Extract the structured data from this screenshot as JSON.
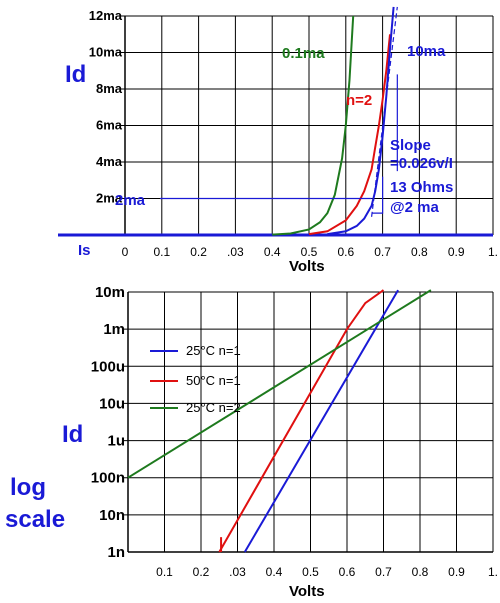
{
  "colors": {
    "blue": "#1a1ad6",
    "red": "#e01010",
    "green": "#1e7a1e",
    "grid": "#000000"
  },
  "chart_data": [
    {
      "type": "line",
      "xlabel": "Volts",
      "ylabel": "Id",
      "x_tick_labels": [
        "0",
        "0.1",
        "0.2",
        ".03",
        "0.4",
        "0.5",
        "0.6",
        "0.7",
        "0.8",
        "0.9",
        "1."
      ],
      "y_tick_labels": [
        "2ma",
        "4ma",
        "6ma",
        "8ma",
        "10ma",
        "12ma"
      ],
      "xlim": [
        0,
        1.0
      ],
      "ylim": [
        0,
        12
      ],
      "y_unit": "ma",
      "grid": true,
      "series": [
        {
          "name": "0.1ma",
          "color": "green",
          "x": [
            0.4,
            0.45,
            0.5,
            0.53,
            0.55,
            0.57,
            0.59,
            0.6,
            0.61,
            0.62
          ],
          "y": [
            0.02,
            0.08,
            0.3,
            0.7,
            1.2,
            2.2,
            4.2,
            6.0,
            8.5,
            12.0
          ]
        },
        {
          "name": "n=2",
          "color": "red",
          "x": [
            0.5,
            0.55,
            0.6,
            0.63,
            0.65,
            0.67,
            0.68,
            0.69,
            0.7,
            0.71,
            0.72
          ],
          "y": [
            0.05,
            0.2,
            0.8,
            1.6,
            2.4,
            3.6,
            4.8,
            6.0,
            7.4,
            9.0,
            11.0
          ]
        },
        {
          "name": "10ma",
          "color": "blue",
          "x": [
            0.55,
            0.6,
            0.63,
            0.65,
            0.67,
            0.68,
            0.69,
            0.7,
            0.71,
            0.72,
            0.73
          ],
          "y": [
            0.05,
            0.2,
            0.5,
            0.9,
            1.6,
            2.4,
            3.6,
            5.4,
            7.6,
            10.2,
            12.5
          ]
        },
        {
          "name": "Slope tangent",
          "color": "blue",
          "style": "dashed",
          "x": [
            0.67,
            0.74
          ],
          "y": [
            1.0,
            12.5
          ]
        }
      ],
      "annotations": {
        "is_label": "Is",
        "ma2_label": "2ma",
        "ma2_level": 2.0,
        "ma2_volts": 0.67,
        "slope_line1": "Slope",
        "slope_line2": "=0.026v/I",
        "ohms_line1": "13 Ohms",
        "ohms_line2": "@2 ma"
      }
    },
    {
      "type": "line",
      "xlabel": "Volts",
      "ylabel": "Id",
      "ylabel2_line1": "log",
      "ylabel2_line2": "scale",
      "y_scale": "log",
      "x_tick_labels": [
        "0.1",
        "0.2",
        ".03",
        "0.4",
        "0.5",
        "0.6",
        "0.7",
        "0.8",
        "0.9",
        "1."
      ],
      "y_tick_labels": [
        "1n",
        "10n",
        "100n",
        "1u",
        "10u",
        "100u",
        "1m",
        "10m"
      ],
      "xlim": [
        0,
        1.0
      ],
      "ylim_decades": [
        -9,
        -2
      ],
      "grid": true,
      "legend_position": "left",
      "series": [
        {
          "name": "25°C n=1",
          "color": "blue",
          "x": [
            0.32,
            0.74
          ],
          "log10_y": [
            -9.0,
            -1.95
          ]
        },
        {
          "name": "50°C n=1",
          "color": "red",
          "x": [
            0.25,
            0.6,
            0.65,
            0.7
          ],
          "log10_y": [
            -9.0,
            -3.0,
            -2.3,
            -1.95
          ]
        },
        {
          "name": "25°C n=2",
          "color": "green",
          "x": [
            0.0,
            0.83
          ],
          "log10_y": [
            -7.0,
            -1.95
          ]
        }
      ]
    }
  ]
}
